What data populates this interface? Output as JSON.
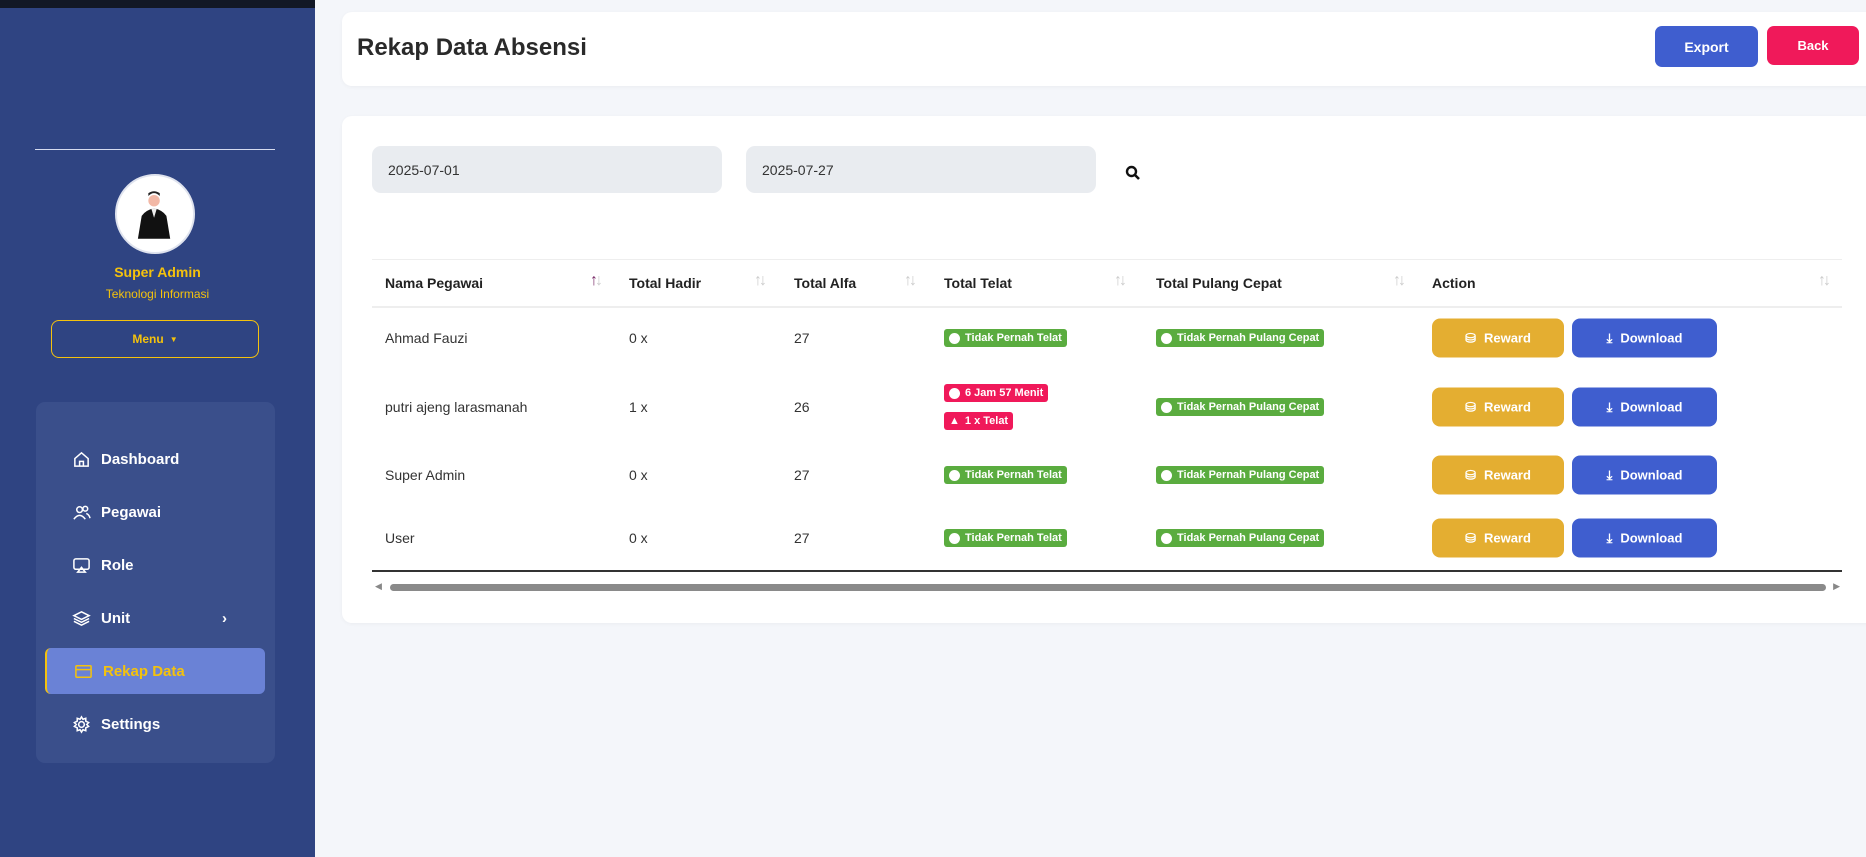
{
  "sidebar": {
    "user_name": "Super Admin",
    "user_unit": "Teknologi Informasi",
    "menu_label": "Menu",
    "items": [
      {
        "label": "Dashboard"
      },
      {
        "label": "Pegawai"
      },
      {
        "label": "Role"
      },
      {
        "label": "Unit"
      },
      {
        "label": "Rekap Data",
        "active": true
      },
      {
        "label": "Settings"
      }
    ]
  },
  "header": {
    "title": "Rekap Data Absensi",
    "export_label": "Export",
    "back_label": "Back"
  },
  "filter": {
    "start_date": "2025-07-01",
    "end_date": "2025-07-27"
  },
  "table": {
    "columns": [
      "Nama Pegawai",
      "Total Hadir",
      "Total Alfa",
      "Total Telat",
      "Total Pulang Cepat",
      "Action"
    ],
    "rows": [
      {
        "nama": "Ahmad Fauzi",
        "hadir": "0 x",
        "alfa": "27",
        "telat": [
          "Tidak Pernah Telat"
        ],
        "pulang": "Tidak Pernah Pulang Cepat"
      },
      {
        "nama": "putri ajeng larasmanah",
        "hadir": "1 x",
        "alfa": "26",
        "telat": [
          "6 Jam 57 Menit",
          "1 x Telat"
        ],
        "pulang": "Tidak Pernah Pulang Cepat"
      },
      {
        "nama": "Super Admin",
        "hadir": "0 x",
        "alfa": "27",
        "telat": [
          "Tidak Pernah Telat"
        ],
        "pulang": "Tidak Pernah Pulang Cepat"
      },
      {
        "nama": "User",
        "hadir": "0 x",
        "alfa": "27",
        "telat": [
          "Tidak Pernah Telat"
        ],
        "pulang": "Tidak Pernah Pulang Cepat"
      }
    ],
    "reward_label": "Reward",
    "download_label": "Download"
  },
  "colors": {
    "sidebar": "#2f4482",
    "accent": "#f4c20d",
    "primary": "#3f5ecf",
    "danger": "#f0195a",
    "success": "#5aac3f",
    "warning": "#e4ae31"
  }
}
